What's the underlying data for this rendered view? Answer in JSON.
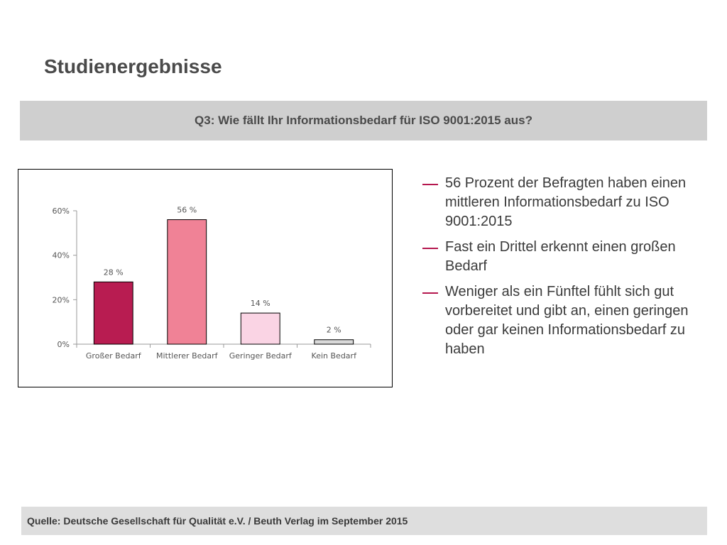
{
  "slide": {
    "title": "Studienergebnisse",
    "question": "Q3: Wie fällt Ihr Informationsbedarf für ISO 9001:2015 aus?",
    "source": "Quelle: Deutsche Gesellschaft für Qualität e.V. / Beuth Verlag im September  2015"
  },
  "bullets": [
    "56 Prozent der Befragten haben einen mittleren Informationsbedarf zu ISO 9001:2015",
    "Fast ein Drittel erkennt einen großen Bedarf",
    "Weniger als ein Fünftel fühlt sich gut vorbereitet und gibt an, einen geringen oder gar keinen Informationsbedarf zu haben"
  ],
  "colors": {
    "accent": "#b5174e",
    "bars": [
      "#b81c51",
      "#f08296",
      "#fad4e4",
      "#d9d9d9"
    ]
  },
  "chart_data": {
    "type": "bar",
    "categories": [
      "Großer Bedarf",
      "Mittlerer Bedarf",
      "Geringer Bedarf",
      "Kein Bedarf"
    ],
    "values": [
      28,
      56,
      14,
      2
    ],
    "data_labels": [
      "28 %",
      "56 %",
      "14 %",
      "2 %"
    ],
    "y_ticks": [
      0,
      20,
      40,
      60
    ],
    "y_tick_labels": [
      "0%",
      "20%",
      "40%",
      "60%"
    ],
    "ylim": [
      0,
      60
    ],
    "title": "",
    "xlabel": "",
    "ylabel": "",
    "grid": false,
    "legend": "none"
  }
}
